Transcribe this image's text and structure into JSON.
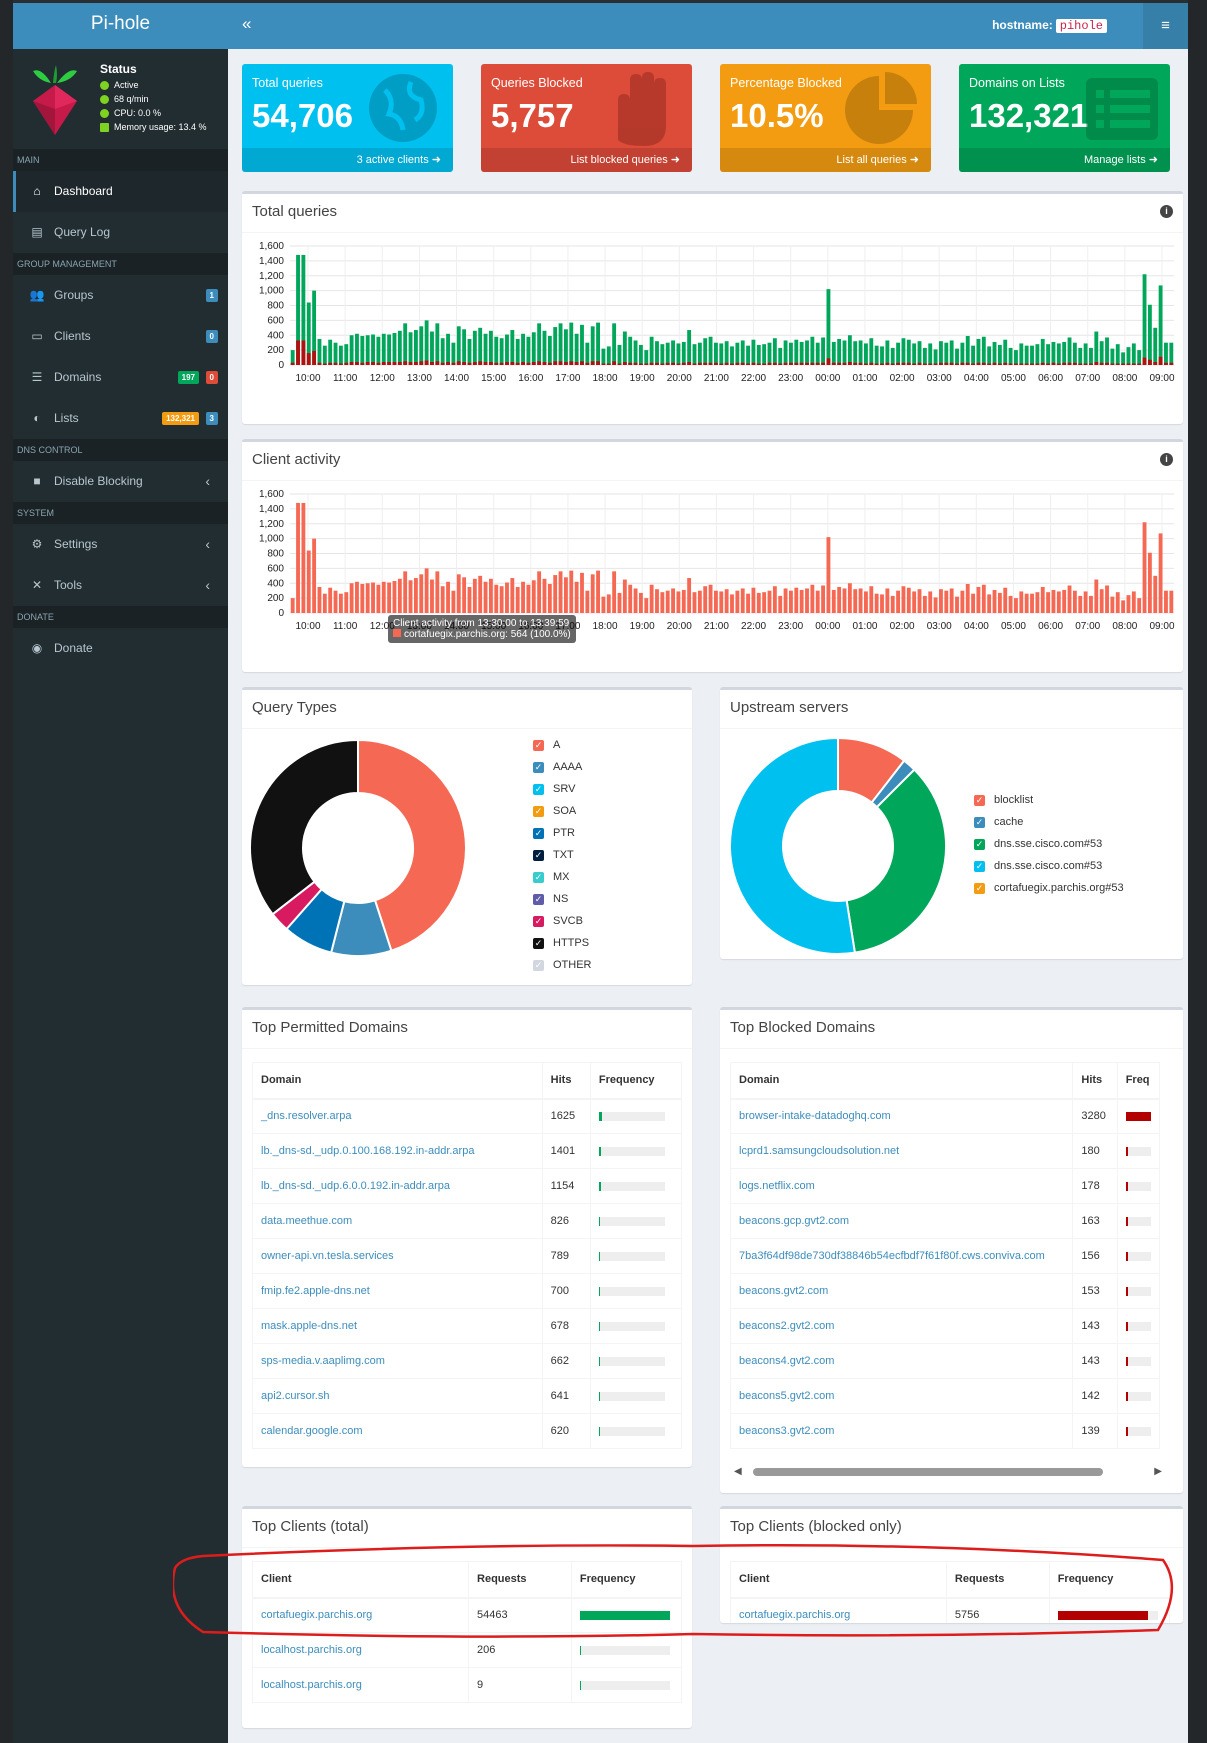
{
  "app": {
    "title": "Pi-hole"
  },
  "status": {
    "title": "Status",
    "lines": [
      "Active",
      "68 q/min",
      "CPU: 0.0 %",
      "Memory usage: 13.4 %"
    ]
  },
  "sidebar": {
    "sections": [
      {
        "header": "MAIN",
        "items": [
          {
            "label": "Dashboard",
            "icon": "home-icon",
            "active": true
          },
          {
            "label": "Query Log",
            "icon": "file-icon"
          }
        ]
      },
      {
        "header": "GROUP MANAGEMENT",
        "items": [
          {
            "label": "Groups",
            "icon": "users-icon",
            "badges": [
              {
                "text": "1",
                "color": "#3c8dbc"
              }
            ]
          },
          {
            "label": "Clients",
            "icon": "laptop-icon",
            "badges": [
              {
                "text": "0",
                "color": "#3c8dbc"
              }
            ]
          },
          {
            "label": "Domains",
            "icon": "list-icon",
            "badges": [
              {
                "text": "197",
                "color": "#00a65a"
              },
              {
                "text": "0",
                "color": "#dd4b39"
              }
            ]
          },
          {
            "label": "Lists",
            "icon": "shield-icon",
            "badges": [
              {
                "text": "132,321",
                "color": "#f39c12"
              },
              {
                "text": "3",
                "color": "#3c8dbc"
              }
            ]
          }
        ]
      },
      {
        "header": "DNS CONTROL",
        "items": [
          {
            "label": "Disable Blocking",
            "icon": "stop-icon",
            "chevron": true
          }
        ]
      },
      {
        "header": "SYSTEM",
        "items": [
          {
            "label": "Settings",
            "icon": "gears-icon",
            "chevron": true
          },
          {
            "label": "Tools",
            "icon": "tools-icon",
            "chevron": true
          }
        ]
      },
      {
        "header": "DONATE",
        "items": [
          {
            "label": "Donate",
            "icon": "donate-icon"
          }
        ]
      }
    ]
  },
  "topbar": {
    "toggle": "«",
    "hostname_label": "hostname:",
    "hostname": "pihole",
    "menu": "≡"
  },
  "stats": [
    {
      "label": "Total queries",
      "value": "54,706",
      "footer": "3 active clients",
      "color": "#00c0ef",
      "icon": "globe-icon"
    },
    {
      "label": "Queries Blocked",
      "value": "5,757",
      "footer": "List blocked queries",
      "color": "#dd4b39",
      "icon": "hand-icon"
    },
    {
      "label": "Percentage Blocked",
      "value": "10.5%",
      "footer": "List all queries",
      "color": "#f39c12",
      "icon": "pie-icon"
    },
    {
      "label": "Domains on Lists",
      "value": "132,321",
      "footer": "Manage lists",
      "color": "#00a65a",
      "icon": "list-icon"
    }
  ],
  "panels": {
    "total_queries": "Total queries",
    "client_activity": "Client activity",
    "query_types": "Query Types",
    "upstream": "Upstream servers",
    "top_permitted": "Top Permitted Domains",
    "top_blocked": "Top Blocked Domains",
    "top_clients": "Top Clients (total)",
    "top_clients_blocked": "Top Clients (blocked only)"
  },
  "tooltip": {
    "line1": "Client activity from 13:30:00 to 13:39:59",
    "line2": "cortafuegix.parchis.org: 564 (100.0%)"
  },
  "chart_data": [
    {
      "type": "bar",
      "title": "Total queries",
      "yticks": [
        "1,600",
        "1,400",
        "1,200",
        "1,000",
        "800",
        "600",
        "400",
        "200",
        "0"
      ],
      "ylim": [
        0,
        1600
      ],
      "xticks": [
        "10:00",
        "11:00",
        "12:00",
        "13:00",
        "14:00",
        "15:00",
        "16:00",
        "17:00",
        "18:00",
        "19:00",
        "20:00",
        "21:00",
        "22:00",
        "23:00",
        "00:00",
        "01:00",
        "02:00",
        "03:00",
        "04:00",
        "05:00",
        "06:00",
        "07:00",
        "08:00",
        "09:00"
      ],
      "series": [
        {
          "values": [
            200,
            1480,
            1480,
            840,
            1000,
            350,
            260,
            340,
            300,
            260,
            280,
            400,
            420,
            390,
            400,
            410,
            380,
            420,
            410,
            430,
            460,
            560,
            440,
            470,
            520,
            600,
            450,
            560,
            360,
            420,
            300,
            520,
            480,
            350,
            460,
            500,
            420,
            460,
            380,
            360,
            410,
            470,
            350,
            420,
            380,
            440,
            560,
            460,
            390,
            510,
            560,
            480,
            570,
            420,
            540,
            300,
            520,
            570,
            220,
            250,
            560,
            270,
            450,
            380,
            330,
            270,
            200,
            380,
            320,
            280,
            300,
            330,
            290,
            310,
            470,
            280,
            300,
            360,
            380,
            300,
            290,
            320,
            250,
            300,
            330,
            260,
            340,
            270,
            280,
            300,
            360,
            230,
            330,
            300,
            340,
            310,
            330,
            380,
            300,
            370,
            1020,
            310,
            350,
            330,
            400,
            320,
            330,
            290,
            360,
            260,
            250,
            330,
            230,
            300,
            360,
            340,
            290,
            320,
            230,
            290,
            210,
            320,
            300,
            330,
            220,
            300,
            390,
            260,
            350,
            380,
            250,
            310,
            270,
            340,
            230,
            200,
            290,
            260,
            260,
            280,
            350,
            280,
            310,
            290,
            310,
            370,
            300,
            230,
            290,
            230,
            450,
            320,
            370,
            220,
            280,
            170,
            240,
            290,
            200,
            1220,
            810,
            500,
            1070,
            300,
            300
          ]
        },
        {
          "values": [
            30,
            330,
            330,
            160,
            190,
            30,
            20,
            30,
            30,
            20,
            30,
            40,
            40,
            30,
            40,
            40,
            30,
            40,
            40,
            40,
            40,
            50,
            40,
            40,
            50,
            60,
            40,
            50,
            30,
            40,
            30,
            50,
            40,
            30,
            40,
            50,
            40,
            40,
            30,
            30,
            40,
            40,
            30,
            40,
            30,
            40,
            50,
            40,
            30,
            50,
            50,
            40,
            50,
            40,
            50,
            30,
            50,
            50,
            20,
            20,
            50,
            20,
            40,
            30,
            30,
            20,
            20,
            30,
            30,
            20,
            30,
            30,
            20,
            30,
            40,
            20,
            30,
            30,
            30,
            30,
            20,
            30,
            20,
            30,
            30,
            20,
            30,
            20,
            20,
            30,
            30,
            20,
            30,
            30,
            30,
            30,
            30,
            30,
            30,
            30,
            90,
            30,
            30,
            30,
            40,
            30,
            30,
            20,
            30,
            20,
            20,
            30,
            20,
            30,
            30,
            30,
            20,
            30,
            20,
            20,
            20,
            30,
            30,
            30,
            20,
            30,
            30,
            20,
            30,
            30,
            20,
            30,
            20,
            30,
            20,
            20,
            20,
            20,
            20,
            20,
            30,
            20,
            30,
            20,
            30,
            30,
            30,
            20,
            20,
            20,
            40,
            30,
            30,
            20,
            20,
            20,
            20,
            20,
            20,
            100,
            70,
            40,
            110,
            30,
            30
          ]
        }
      ]
    },
    {
      "type": "bar",
      "title": "Client activity",
      "yticks": [
        "1,600",
        "1,400",
        "1,200",
        "1,000",
        "800",
        "600",
        "400",
        "200",
        "0"
      ],
      "ylim": [
        0,
        1600
      ],
      "xticks": [
        "10:00",
        "11:00",
        "12:00",
        "13:00",
        "14:00",
        "15:00",
        "16:00",
        "17:00",
        "18:00",
        "19:00",
        "20:00",
        "21:00",
        "22:00",
        "23:00",
        "00:00",
        "01:00",
        "02:00",
        "03:00",
        "04:00",
        "05:00",
        "06:00",
        "07:00",
        "08:00",
        "09:00"
      ],
      "series": [
        {
          "name": "cortafuegix.parchis.org",
          "values": [
            200,
            1480,
            1480,
            840,
            1000,
            350,
            260,
            340,
            300,
            260,
            280,
            400,
            420,
            390,
            400,
            410,
            380,
            420,
            410,
            430,
            460,
            560,
            440,
            470,
            520,
            600,
            450,
            560,
            360,
            420,
            300,
            520,
            480,
            350,
            460,
            500,
            420,
            460,
            380,
            360,
            410,
            470,
            350,
            420,
            380,
            440,
            560,
            460,
            390,
            510,
            560,
            480,
            570,
            420,
            540,
            300,
            520,
            570,
            220,
            250,
            560,
            270,
            450,
            380,
            330,
            270,
            200,
            380,
            320,
            280,
            300,
            330,
            290,
            310,
            470,
            280,
            300,
            360,
            380,
            300,
            290,
            320,
            250,
            300,
            330,
            260,
            340,
            270,
            280,
            300,
            360,
            230,
            330,
            300,
            340,
            310,
            330,
            380,
            300,
            370,
            1020,
            310,
            350,
            330,
            400,
            320,
            330,
            290,
            360,
            260,
            250,
            330,
            230,
            300,
            360,
            340,
            290,
            320,
            230,
            290,
            210,
            320,
            300,
            330,
            220,
            300,
            390,
            260,
            350,
            380,
            250,
            310,
            270,
            340,
            230,
            200,
            290,
            260,
            260,
            280,
            350,
            280,
            310,
            290,
            310,
            370,
            300,
            230,
            290,
            230,
            450,
            320,
            370,
            220,
            280,
            170,
            240,
            290,
            200,
            1220,
            810,
            500,
            1070,
            300,
            300
          ]
        }
      ]
    },
    {
      "type": "pie",
      "title": "Query Types",
      "labels": [
        "A",
        "AAAA",
        "SRV",
        "SOA",
        "PTR",
        "TXT",
        "MX",
        "NS",
        "SVCB",
        "HTTPS",
        "OTHER"
      ],
      "values": [
        45.0,
        9.0,
        0,
        0,
        7.5,
        0,
        0,
        0,
        3.0,
        35.5,
        0
      ],
      "colors": [
        "#f56954",
        "#3c8dbc",
        "#00c0ef",
        "#f39c12",
        "#0073b7",
        "#001f3f",
        "#39cccc",
        "#605ca8",
        "#d81b60",
        "#111111",
        "#d2d6de"
      ]
    },
    {
      "type": "pie",
      "title": "Upstream servers",
      "labels": [
        "blocklist",
        "cache",
        "dns.sse.cisco.com#53",
        "dns.sse.cisco.com#53",
        "cortafuegix.parchis.org#53"
      ],
      "values": [
        10.5,
        2.0,
        35.0,
        52.5,
        0
      ],
      "colors": [
        "#f56954",
        "#3c8dbc",
        "#00a65a",
        "#00c0ef",
        "#f39c12"
      ]
    }
  ],
  "top_permitted": {
    "headers": [
      "Domain",
      "Hits",
      "Frequency"
    ],
    "rows": [
      {
        "domain": "_dns.resolver.arpa",
        "hits": "1625",
        "freq": 0.03
      },
      {
        "domain": "lb._dns-sd._udp.0.100.168.192.in-addr.arpa",
        "hits": "1401",
        "freq": 0.026
      },
      {
        "domain": "lb._dns-sd._udp.6.0.0.192.in-addr.arpa",
        "hits": "1154",
        "freq": 0.021
      },
      {
        "domain": "data.meethue.com",
        "hits": "826",
        "freq": 0.015
      },
      {
        "domain": "owner-api.vn.tesla.services",
        "hits": "789",
        "freq": 0.014
      },
      {
        "domain": "fmip.fe2.apple-dns.net",
        "hits": "700",
        "freq": 0.013
      },
      {
        "domain": "mask.apple-dns.net",
        "hits": "678",
        "freq": 0.012
      },
      {
        "domain": "sps-media.v.aaplimg.com",
        "hits": "662",
        "freq": 0.012
      },
      {
        "domain": "api2.cursor.sh",
        "hits": "641",
        "freq": 0.012
      },
      {
        "domain": "calendar.google.com",
        "hits": "620",
        "freq": 0.011
      }
    ]
  },
  "top_blocked": {
    "headers": [
      "Domain",
      "Hits",
      "Freq"
    ],
    "rows": [
      {
        "domain": "browser-intake-datadoghq.com",
        "hits": "3280",
        "freq": 0.57
      },
      {
        "domain": "lcprd1.samsungcloudsolution.net",
        "hits": "180",
        "freq": 0.031
      },
      {
        "domain": "logs.netflix.com",
        "hits": "178",
        "freq": 0.031
      },
      {
        "domain": "beacons.gcp.gvt2.com",
        "hits": "163",
        "freq": 0.028
      },
      {
        "domain": "7ba3f64df98de730df38846b54ecfbdf7f61f80f.cws.conviva.com",
        "hits": "156",
        "freq": 0.027
      },
      {
        "domain": "beacons.gvt2.com",
        "hits": "153",
        "freq": 0.027
      },
      {
        "domain": "beacons2.gvt2.com",
        "hits": "143",
        "freq": 0.025
      },
      {
        "domain": "beacons4.gvt2.com",
        "hits": "143",
        "freq": 0.025
      },
      {
        "domain": "beacons5.gvt2.com",
        "hits": "142",
        "freq": 0.025
      },
      {
        "domain": "beacons3.gvt2.com",
        "hits": "139",
        "freq": 0.024
      }
    ]
  },
  "top_clients": {
    "headers": [
      "Client",
      "Requests",
      "Frequency"
    ],
    "rows": [
      {
        "client": "cortafuegix.parchis.org",
        "requests": "54463",
        "freq": 0.996
      },
      {
        "client": "localhost.parchis.org",
        "requests": "206",
        "freq": 0.004
      },
      {
        "client": "localhost.parchis.org",
        "requests": "9",
        "freq": 0.0002
      }
    ]
  },
  "top_clients_blocked": {
    "headers": [
      "Client",
      "Requests",
      "Frequency"
    ],
    "rows": [
      {
        "client": "cortafuegix.parchis.org",
        "requests": "5756",
        "freq": 0.999
      }
    ]
  }
}
